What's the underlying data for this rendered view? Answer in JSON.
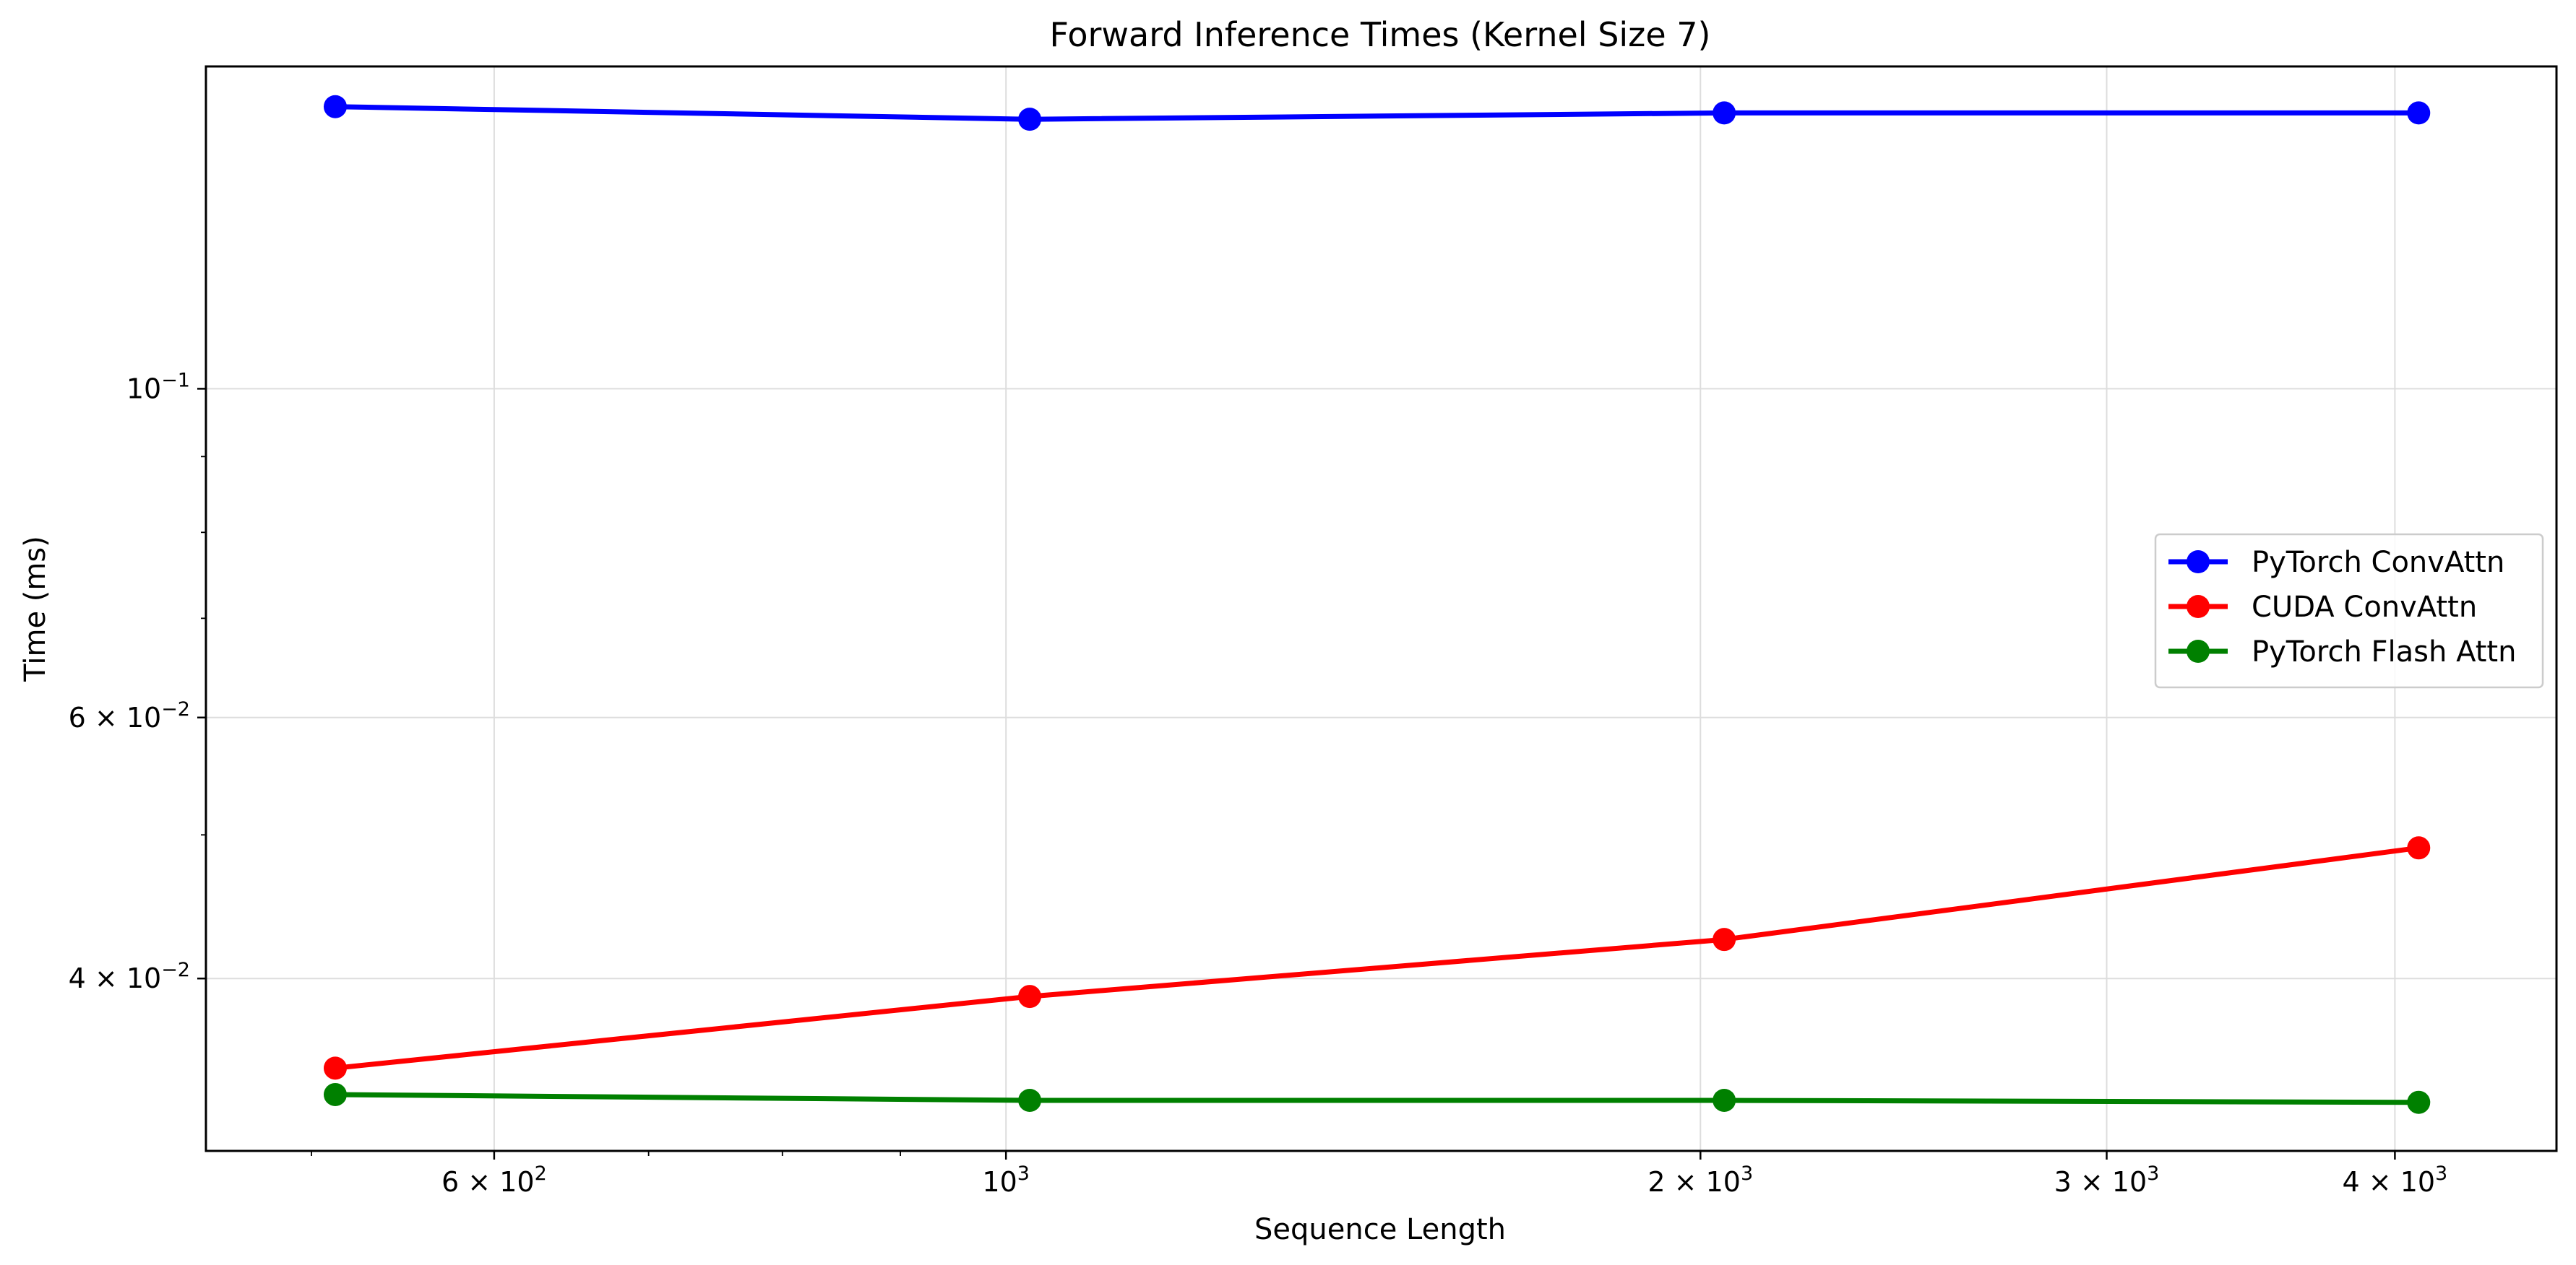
{
  "chart_data": {
    "type": "line",
    "title": "Forward Inference Times (Kernel Size 7)",
    "xlabel": "Sequence Length",
    "ylabel": "Time (ms)",
    "xscale": "log",
    "yscale": "log",
    "xlim": [
      450,
      4700
    ],
    "ylim": [
      0.0306,
      0.165
    ],
    "x": [
      512,
      1024,
      2048,
      4096
    ],
    "grid": true,
    "legend_position": "center-right",
    "x_ticks": [
      {
        "value": 600,
        "base": "6 × 10",
        "exp": "2"
      },
      {
        "value": 1000,
        "base": "10",
        "exp": "3"
      },
      {
        "value": 2000,
        "base": "2 × 10",
        "exp": "3"
      },
      {
        "value": 3000,
        "base": "3 × 10",
        "exp": "3"
      },
      {
        "value": 4000,
        "base": "4 × 10",
        "exp": "3"
      }
    ],
    "x_minor_ticks": [
      500,
      700,
      800,
      900
    ],
    "y_ticks": [
      {
        "value": 0.04,
        "base": "4 × 10",
        "exp": "−2"
      },
      {
        "value": 0.06,
        "base": "6 × 10",
        "exp": "−2"
      },
      {
        "value": 0.1,
        "base": "10",
        "exp": "−1"
      }
    ],
    "y_minor_ticks": [
      0.05,
      0.07,
      0.08,
      0.09
    ],
    "series": [
      {
        "name": "PyTorch ConvAttn",
        "color": "#0000ff",
        "values": [
          0.155,
          0.152,
          0.1535,
          0.1535
        ]
      },
      {
        "name": "CUDA ConvAttn",
        "color": "#ff0000",
        "values": [
          0.0348,
          0.0389,
          0.0425,
          0.049
        ]
      },
      {
        "name": "PyTorch Flash Attn",
        "color": "#008000",
        "values": [
          0.0334,
          0.0331,
          0.0331,
          0.033
        ]
      }
    ]
  }
}
